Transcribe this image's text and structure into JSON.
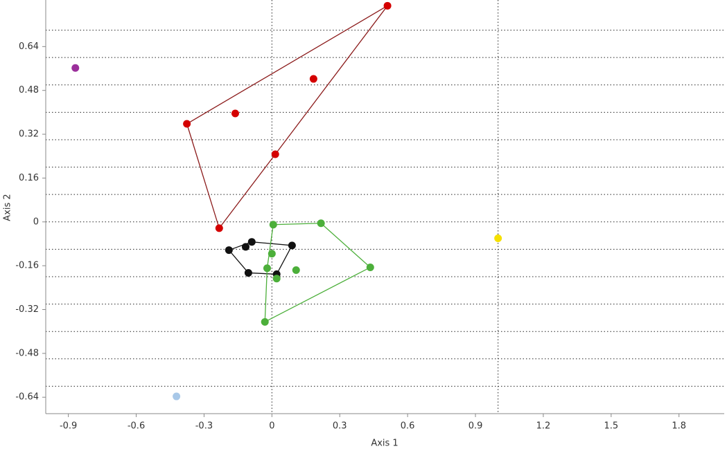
{
  "chart_data": {
    "type": "scatter",
    "x_label": "Axis 1",
    "y_label": "Axis 2",
    "xlim": [
      -1.0,
      2.0
    ],
    "ylim": [
      -0.7,
      0.81
    ],
    "xticks": [
      -0.9,
      -0.6,
      -0.3,
      0,
      0.3,
      0.6,
      0.9,
      1.2,
      1.5,
      1.8
    ],
    "yticks": [
      -0.64,
      -0.48,
      -0.32,
      -0.16,
      0,
      0.16,
      0.32,
      0.48,
      0.64
    ],
    "xgrid": [
      0,
      1
    ],
    "ygrid": [
      -0.6,
      -0.5,
      -0.4,
      -0.3,
      -0.2,
      -0.1,
      0,
      0.1,
      0.2,
      0.3,
      0.4,
      0.5,
      0.6,
      0.7
    ],
    "series": [
      {
        "color": "#d40000",
        "hull_color": "#8b1a1a",
        "hull": true,
        "x": [
          0.511,
          0.184,
          -0.162,
          -0.376,
          0.015,
          -0.233
        ],
        "y": [
          0.789,
          0.522,
          0.396,
          0.358,
          0.247,
          -0.023
        ]
      },
      {
        "color": "#111111",
        "hull_color": "#111111",
        "hull": true,
        "x": [
          -0.19,
          -0.116,
          -0.089,
          0.089,
          0.021,
          -0.104
        ],
        "y": [
          -0.103,
          -0.091,
          -0.073,
          -0.086,
          -0.191,
          -0.186
        ]
      },
      {
        "color": "#4caf3a",
        "hull_color": "#4caf3a",
        "hull": true,
        "x": [
          0.006,
          0.217,
          0.435,
          -0.031,
          -0.021,
          0.0,
          0.021,
          0.107
        ],
        "y": [
          -0.01,
          -0.005,
          -0.166,
          -0.365,
          -0.169,
          -0.116,
          -0.207,
          -0.176
        ]
      },
      {
        "color": "#9b2f9b",
        "hull": false,
        "x": [
          -0.869
        ],
        "y": [
          0.562
        ]
      },
      {
        "color": "#a8c8e8",
        "hull": false,
        "x": [
          -0.422
        ],
        "y": [
          -0.637
        ]
      },
      {
        "color": "#f5e000",
        "hull": false,
        "x": [
          1.0
        ],
        "y": [
          -0.06
        ]
      }
    ]
  }
}
